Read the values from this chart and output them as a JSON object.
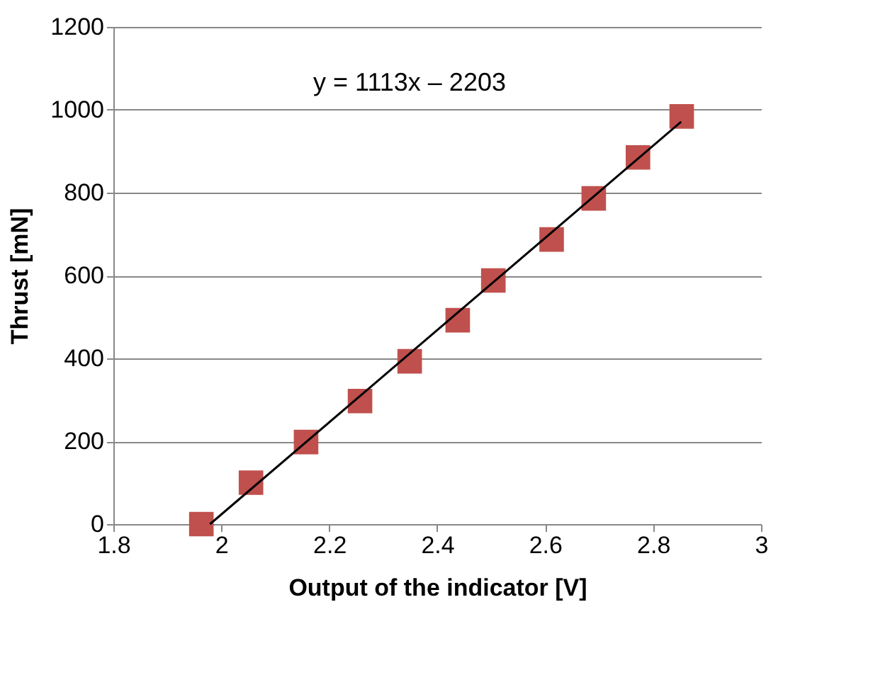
{
  "chart_data": {
    "type": "scatter",
    "xlabel": "Output of the indicator  [V]",
    "ylabel": "Thrust [mN]",
    "x": [
      1.963,
      2.055,
      2.157,
      2.257,
      2.349,
      2.438,
      2.504,
      2.612,
      2.69,
      2.772,
      2.853
    ],
    "series": [
      {
        "color": "#c0504d",
        "marker": "square",
        "values": [
          0,
          100,
          198,
          297,
          393,
          492,
          588,
          687,
          786,
          885,
          984
        ]
      },
      {
        "type": "line",
        "color": "#000000",
        "marker": "none",
        "line_style": "solid",
        "x": [
          1.979,
          2.852
        ],
        "values": [
          0,
          971
        ]
      }
    ],
    "xlim": [
      1.8,
      3
    ],
    "xticks": [
      1.8,
      2,
      2.2,
      2.4,
      2.6,
      2.8,
      3
    ],
    "ylim": [
      0,
      1200
    ],
    "yticks": [
      0,
      200,
      400,
      600,
      800,
      1000,
      1200
    ],
    "grid": "y",
    "annotations": [
      "y = 1113x – 2203"
    ]
  }
}
